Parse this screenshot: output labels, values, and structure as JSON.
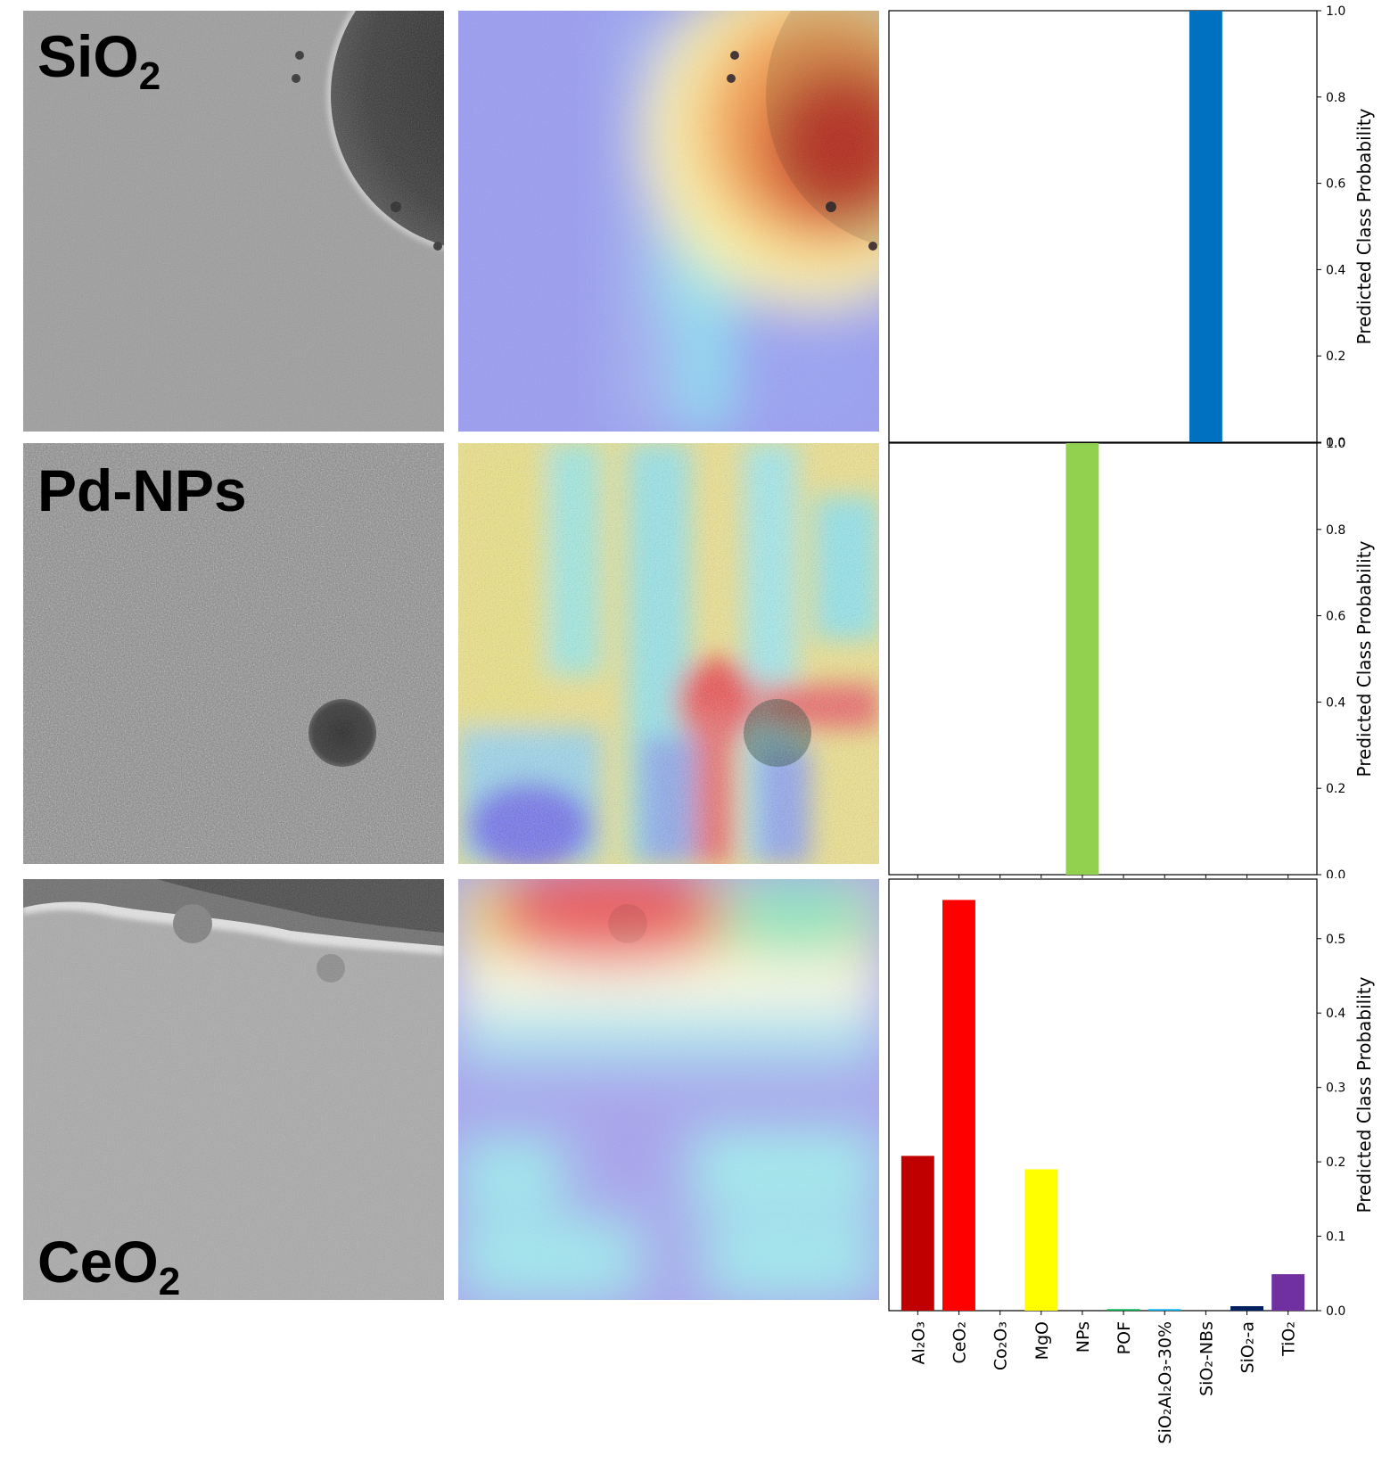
{
  "rows": [
    {
      "label": {
        "main": "SiO",
        "sub": "2"
      },
      "tem_icon": "tem-micrograph-large-sphere",
      "heatmap_icon": "gradcam-heatmap-overlay"
    },
    {
      "label": {
        "main": "Pd-NPs",
        "sub": ""
      },
      "tem_icon": "tem-micrograph-nanoparticle",
      "heatmap_icon": "gradcam-heatmap-overlay"
    },
    {
      "label": {
        "main": "CeO",
        "sub": "2"
      },
      "tem_icon": "tem-micrograph-support-edge",
      "heatmap_icon": "gradcam-heatmap-overlay"
    }
  ],
  "chart_data": [
    {
      "type": "bar",
      "ylabel": "Predicted Class Probability",
      "ylim": [
        0,
        1.0
      ],
      "yticks": [
        "0.0",
        "0.2",
        "0.4",
        "0.6",
        "0.8",
        "1.0"
      ],
      "categories": [
        "Al2O3",
        "CeO2",
        "Co2O3",
        "MgO",
        "NPs",
        "POF",
        "SiO2Al2O3-30%",
        "SiO2-NBs",
        "SiO2-a",
        "TiO2"
      ],
      "values": [
        0,
        0,
        0,
        0,
        0,
        0,
        0,
        1.0,
        0,
        0
      ],
      "colors": [
        "#c00000",
        "#ff0000",
        "#ffc000",
        "#ffff00",
        "#92d050",
        "#00b050",
        "#00b0f0",
        "#0070c0",
        "#002060",
        "#7030a0"
      ]
    },
    {
      "type": "bar",
      "ylabel": "Predicted Class Probability",
      "ylim": [
        0,
        1.0
      ],
      "yticks": [
        "0.0",
        "0.2",
        "0.4",
        "0.6",
        "0.8",
        "1.0"
      ],
      "categories": [
        "Al2O3",
        "CeO2",
        "Co2O3",
        "MgO",
        "NPs",
        "POF",
        "SiO2Al2O3-30%",
        "SiO2-NBs",
        "SiO2-a",
        "TiO2"
      ],
      "values": [
        0,
        0,
        0,
        0,
        1.0,
        0,
        0,
        0,
        0,
        0
      ],
      "colors": [
        "#c00000",
        "#ff0000",
        "#ffc000",
        "#ffff00",
        "#92d050",
        "#00b050",
        "#00b0f0",
        "#0070c0",
        "#002060",
        "#7030a0"
      ]
    },
    {
      "type": "bar",
      "ylabel": "Predicted Class Probability",
      "ylim": [
        0,
        0.58
      ],
      "yticks": [
        "0.0",
        "0.1",
        "0.2",
        "0.3",
        "0.4",
        "0.5"
      ],
      "categories": [
        "Al2O3",
        "CeO2",
        "Co2O3",
        "MgO",
        "NPs",
        "POF",
        "SiO2Al2O3-30%",
        "SiO2-NBs",
        "SiO2-a",
        "TiO2"
      ],
      "xtick_labels": [
        "Al₂O₃",
        "CeO₂",
        "Co₂O₃",
        "MgO",
        "NPs",
        "POF",
        "SiO₂Al₂O₃-30%",
        "SiO₂-NBs",
        "SiO₂-a",
        "TiO₂"
      ],
      "values": [
        0.208,
        0.552,
        0,
        0.19,
        0,
        0.002,
        0.002,
        0,
        0.006,
        0.049
      ],
      "colors": [
        "#c00000",
        "#ff0000",
        "#ffc000",
        "#ffff00",
        "#92d050",
        "#00b050",
        "#00b0f0",
        "#0070c0",
        "#002060",
        "#7030a0"
      ]
    }
  ]
}
